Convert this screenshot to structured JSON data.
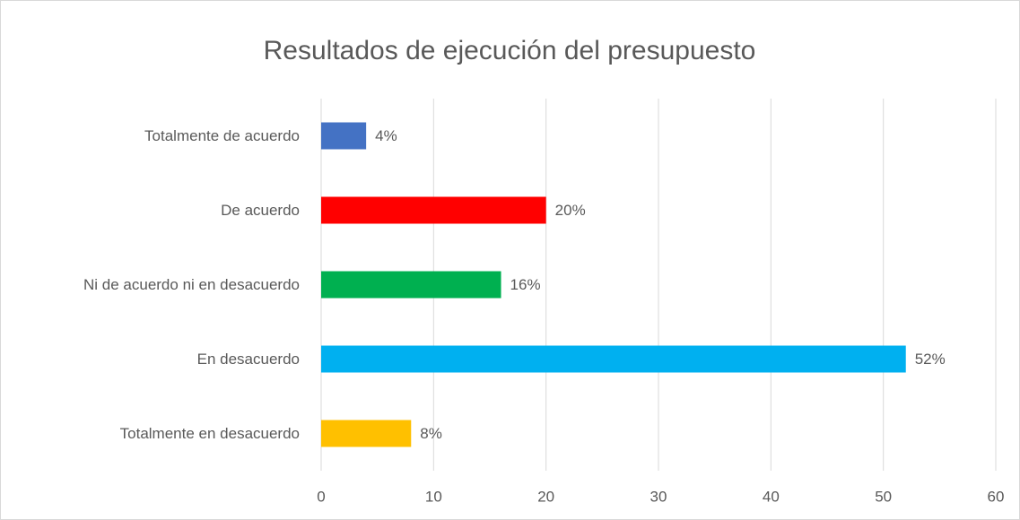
{
  "chart_data": {
    "type": "barh",
    "title": "Resultados de ejecución del presupuesto",
    "categories": [
      "Totalmente de acuerdo",
      "De acuerdo",
      "Ni de acuerdo ni en desacuerdo",
      "En desacuerdo",
      "Totalmente en desacuerdo"
    ],
    "values": [
      4,
      20,
      16,
      52,
      8
    ],
    "value_labels": [
      "4%",
      "20%",
      "16%",
      "52%",
      "8%"
    ],
    "colors": [
      "#4472c4",
      "#ff0000",
      "#00b050",
      "#00b0f0",
      "#ffc000"
    ],
    "xlim": [
      0,
      60
    ],
    "xticks": [
      0,
      10,
      20,
      30,
      40,
      50,
      60
    ],
    "grid": true
  }
}
